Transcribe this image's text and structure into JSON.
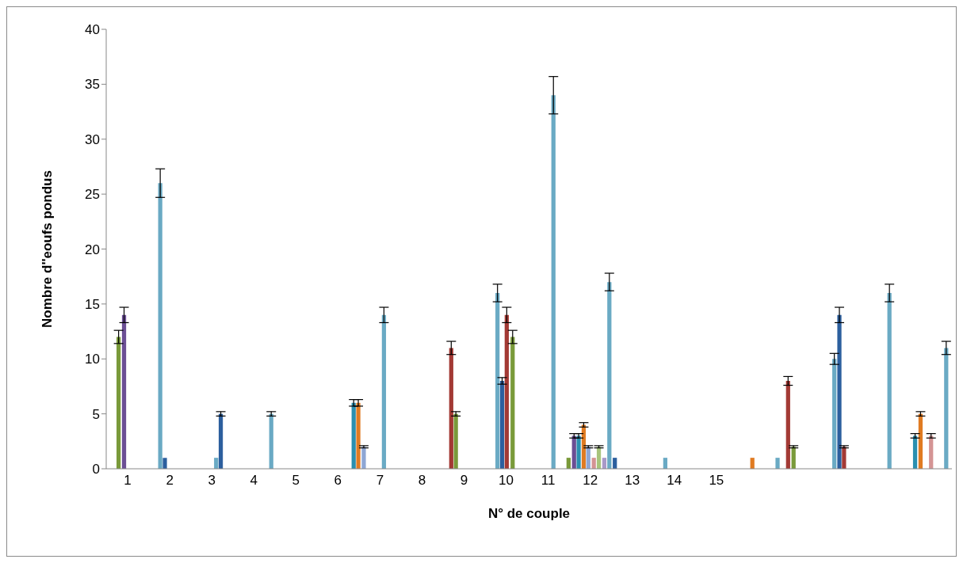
{
  "chart_data": {
    "type": "bar",
    "xlabel": "N° de couple",
    "ylabel": "Nombre d''eoufs pondus",
    "series": [
      {
        "color": "#6aaac4",
        "x": [
          1.78,
          3.11,
          4.42,
          7.1,
          9.8,
          11.13,
          12.46,
          13.79,
          16.46,
          17.81,
          19.12,
          20.47
        ],
        "values": [
          26,
          1,
          5,
          14,
          16,
          34,
          17,
          1,
          1,
          10,
          16,
          11
        ],
        "errors": [
          1.3,
          0,
          0.2,
          0.7,
          0.8,
          1.7,
          0.8,
          0,
          0,
          0.5,
          0.8,
          0.6
        ]
      },
      {
        "color": "#2c5f9e",
        "x": [
          1.89,
          3.22,
          9.91,
          12.59,
          17.93
        ],
        "values": [
          1,
          5,
          8,
          1,
          14
        ],
        "errors": [
          0,
          0.2,
          0.3,
          0,
          0.7
        ]
      },
      {
        "color": "#a33a35",
        "x": [
          8.7,
          10.02,
          16.71,
          18.04
        ],
        "values": [
          11,
          14,
          8,
          2
        ],
        "errors": [
          0.6,
          0.7,
          0.4,
          0.1
        ]
      },
      {
        "color": "#7a9a3a",
        "x": [
          0.79,
          8.81,
          10.16,
          11.49,
          16.84
        ],
        "values": [
          12,
          5,
          12,
          1,
          2
        ],
        "errors": [
          0.6,
          0.2,
          0.6,
          0,
          0.1
        ]
      },
      {
        "color": "#6b4e94",
        "x": [
          0.92,
          11.62
        ],
        "values": [
          14,
          3
        ],
        "errors": [
          0.7,
          0.2
        ]
      },
      {
        "color": "#2a8fb0",
        "x": [
          6.38,
          11.73,
          19.73
        ],
        "values": [
          6,
          3,
          3
        ],
        "errors": [
          0.3,
          0.2,
          0.2
        ]
      },
      {
        "color": "#e07b22",
        "x": [
          6.49,
          11.85,
          15.86,
          19.86
        ],
        "values": [
          6,
          4,
          1,
          5
        ],
        "errors": [
          0.3,
          0.2,
          0,
          0.2
        ]
      },
      {
        "color": "#8ea6d4",
        "x": [
          6.62,
          11.96
        ],
        "values": [
          2,
          2
        ],
        "errors": [
          0.1,
          0.1
        ]
      },
      {
        "color": "#d49494",
        "x": [
          12.09,
          20.11
        ],
        "values": [
          1,
          3
        ],
        "errors": [
          0,
          0.2
        ]
      },
      {
        "color": "#a8c47c",
        "x": [
          12.21
        ],
        "values": [
          2
        ],
        "errors": [
          0.1
        ]
      },
      {
        "color": "#a899c8",
        "x": [
          12.34
        ],
        "values": [
          1
        ],
        "errors": [
          0
        ]
      }
    ],
    "xlim": [
      0.49,
      20.6
    ],
    "xticks": [
      1,
      2,
      3,
      4,
      5,
      6,
      7,
      8,
      9,
      10,
      11,
      12,
      13,
      14,
      15
    ],
    "ylim": [
      0,
      40
    ],
    "yticks": [
      0,
      5,
      10,
      15,
      20,
      25,
      30,
      35,
      40
    ],
    "grid": false,
    "legend": false
  }
}
